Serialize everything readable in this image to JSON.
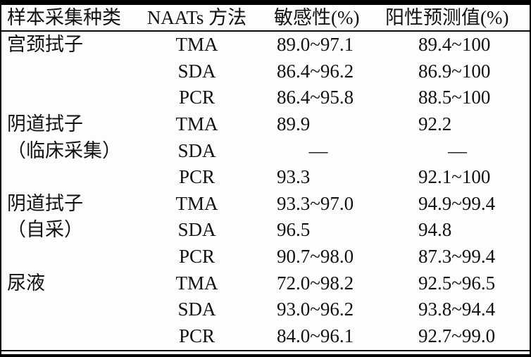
{
  "chart_data": {
    "type": "table",
    "headers": [
      "样本采集种类",
      "NAATs 方法",
      "敏感性(%)",
      "阳性预测值(%)"
    ],
    "rows": [
      {
        "sample": "宫颈拭子",
        "method": "TMA",
        "sensitivity": "89.0~97.1",
        "ppv": "89.4~100"
      },
      {
        "sample": "",
        "method": "SDA",
        "sensitivity": "86.4~96.2",
        "ppv": "86.9~100"
      },
      {
        "sample": "",
        "method": "PCR",
        "sensitivity": "86.4~95.8",
        "ppv": "88.5~100"
      },
      {
        "sample": "阴道拭子",
        "method": "TMA",
        "sensitivity": "89.9",
        "ppv": "92.2"
      },
      {
        "sample": "（临床采集）",
        "method": "SDA",
        "sensitivity": "—",
        "ppv": "—"
      },
      {
        "sample": "",
        "method": "PCR",
        "sensitivity": "93.3",
        "ppv": "92.1~100"
      },
      {
        "sample": "阴道拭子",
        "method": "TMA",
        "sensitivity": "93.3~97.0",
        "ppv": "94.9~99.4"
      },
      {
        "sample": "（自采）",
        "method": "SDA",
        "sensitivity": "96.5",
        "ppv": "94.8"
      },
      {
        "sample": "",
        "method": "PCR",
        "sensitivity": "90.7~98.0",
        "ppv": "87.3~99.4"
      },
      {
        "sample": "尿液",
        "method": "TMA",
        "sensitivity": "72.0~98.2",
        "ppv": "92.5~96.5"
      },
      {
        "sample": "",
        "method": "SDA",
        "sensitivity": "93.0~96.2",
        "ppv": "93.8~94.4"
      },
      {
        "sample": "",
        "method": "PCR",
        "sensitivity": "84.0~96.1",
        "ppv": "92.7~99.0"
      }
    ]
  },
  "colors": {
    "text": "#111111",
    "rule": "#000000",
    "background": "#fdfdfd"
  }
}
